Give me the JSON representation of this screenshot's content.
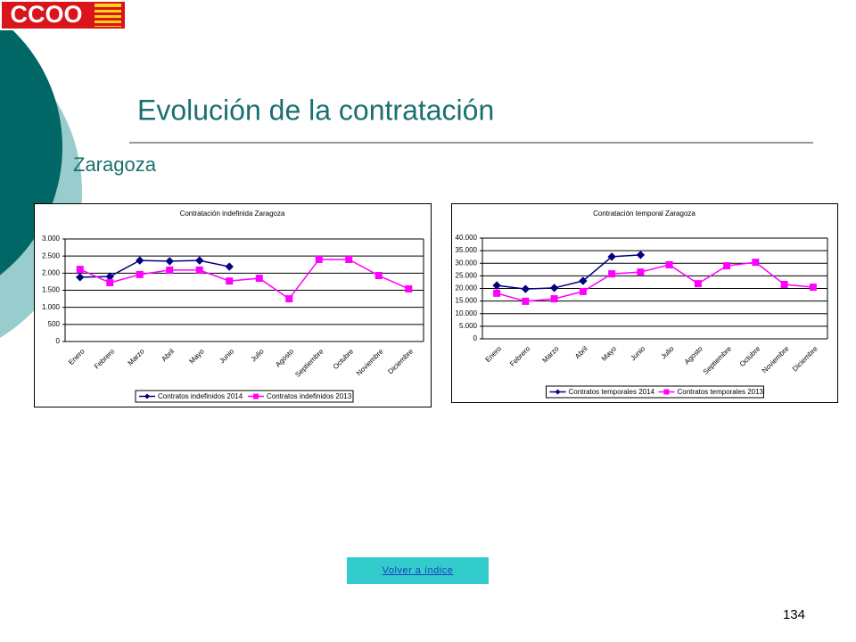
{
  "slide": {
    "logo": "CCOO",
    "title": "Evolución de la contratación",
    "subtitle": "Zaragoza",
    "button": "Volver a índice",
    "page_number": "134"
  },
  "chart_data": [
    {
      "type": "line",
      "title": "Contratación indefinida Zaragoza",
      "categories": [
        "Enero",
        "Febrero",
        "Marzo",
        "Abril",
        "Mayo",
        "Junio",
        "Julio",
        "Agosto",
        "Septiembre",
        "Octubre",
        "Noviembre",
        "Diciembre"
      ],
      "series": [
        {
          "name": "Contratos indefinidos 2014",
          "color": "#000080",
          "marker": "diamond",
          "values": [
            1880,
            1900,
            2370,
            2350,
            2370,
            2190,
            null,
            null,
            null,
            null,
            null,
            null
          ]
        },
        {
          "name": "Contratos indefinidos 2013",
          "color": "#ff00ff",
          "marker": "square",
          "values": [
            2110,
            1720,
            1960,
            2090,
            2090,
            1770,
            1850,
            1250,
            2400,
            2400,
            1930,
            1540
          ]
        }
      ],
      "ylim": [
        0,
        3000
      ],
      "yticks": [
        0,
        500,
        {
          "value": 1000,
          "label": "1.000"
        },
        {
          "value": 1500,
          "label": "1.500"
        },
        {
          "value": 2000,
          "label": "2.000"
        },
        {
          "value": 2500,
          "label": "2.500"
        },
        {
          "value": 3000,
          "label": "3.000"
        }
      ],
      "grid": true,
      "legend": "bottom"
    },
    {
      "type": "line",
      "title": "Contratación temporal Zaragoza",
      "categories": [
        "Enero",
        "Febrero",
        "Marzo",
        "Abril",
        "Mayo",
        "Junio",
        "Julio",
        "Agosto",
        "Septiembre",
        "Octubre",
        "Noviembre",
        "Diciembre"
      ],
      "series": [
        {
          "name": "Contratos temporales 2014",
          "color": "#000080",
          "marker": "diamond",
          "values": [
            21200,
            19800,
            20200,
            23000,
            32600,
            33300,
            null,
            null,
            null,
            null,
            null,
            null
          ]
        },
        {
          "name": "Contratos temporales 2013",
          "color": "#ff00ff",
          "marker": "square",
          "values": [
            18100,
            14900,
            15900,
            18800,
            25800,
            26500,
            29400,
            21900,
            29000,
            30400,
            21600,
            20500
          ]
        }
      ],
      "ylim": [
        0,
        40000
      ],
      "yticks": [
        0,
        {
          "value": 5000,
          "label": "5.000"
        },
        {
          "value": 10000,
          "label": "10.000"
        },
        {
          "value": 15000,
          "label": "15.000"
        },
        {
          "value": 20000,
          "label": "20.000"
        },
        {
          "value": 25000,
          "label": "25.000"
        },
        {
          "value": 30000,
          "label": "30.000"
        },
        {
          "value": 35000,
          "label": "35.000"
        },
        {
          "value": 40000,
          "label": "40.000"
        }
      ],
      "grid": true,
      "legend": "bottom"
    }
  ]
}
